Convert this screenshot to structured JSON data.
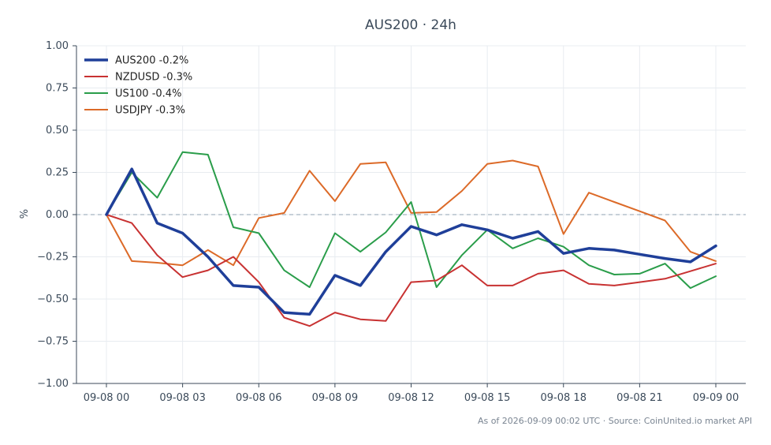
{
  "chart_data": {
    "type": "line",
    "title": "AUS200 · 24h",
    "ylabel": "%",
    "xlabel": "",
    "ylim": [
      -1.0,
      1.0
    ],
    "yticks": [
      1.0,
      0.75,
      0.5,
      0.25,
      0.0,
      -0.25,
      -0.5,
      -0.75,
      -1.0
    ],
    "ytick_labels": [
      "1.00",
      "0.75",
      "0.50",
      "0.25",
      "0.00",
      "−0.25",
      "−0.50",
      "−0.75",
      "−1.00"
    ],
    "xlim": [
      0,
      24
    ],
    "xticks": [
      0,
      3,
      6,
      9,
      12,
      15,
      18,
      21,
      24
    ],
    "xtick_labels": [
      "09-08 00",
      "09-08 03",
      "09-08 06",
      "09-08 09",
      "09-08 12",
      "09-08 15",
      "09-08 18",
      "09-08 21",
      "09-09 00"
    ],
    "grid": true,
    "zero_line": true,
    "legend_position": "top-left",
    "series": [
      {
        "name": "AUS200 -0.2%",
        "color": "#1f3f99",
        "width": 3.5,
        "x": [
          0,
          1,
          2,
          3,
          4,
          5,
          6,
          7,
          8,
          9,
          10,
          11,
          12,
          13,
          14,
          15,
          16,
          17,
          18,
          19,
          20,
          21,
          22,
          23,
          24
        ],
        "values": [
          0.0,
          0.27,
          -0.05,
          -0.11,
          -0.25,
          -0.42,
          -0.43,
          -0.58,
          -0.59,
          -0.36,
          -0.42,
          -0.22,
          -0.07,
          -0.12,
          -0.06,
          -0.09,
          -0.14,
          -0.1,
          -0.23,
          -0.2,
          -0.21,
          -0.235,
          -0.26,
          -0.28,
          -0.185
        ]
      },
      {
        "name": "NZDUSD -0.3%",
        "color": "#c83232",
        "width": 2,
        "x": [
          0,
          1,
          2,
          3,
          4,
          5,
          6,
          7,
          8,
          9,
          10,
          11,
          12,
          13,
          14,
          15,
          16,
          17,
          18,
          19,
          20,
          21,
          22,
          23,
          24
        ],
        "values": [
          0.0,
          -0.05,
          -0.24,
          -0.37,
          -0.33,
          -0.25,
          -0.4,
          -0.61,
          -0.66,
          -0.58,
          -0.62,
          -0.63,
          -0.4,
          -0.39,
          -0.3,
          -0.42,
          -0.42,
          -0.35,
          -0.33,
          -0.41,
          -0.42,
          -0.4,
          -0.38,
          -0.335,
          -0.29
        ]
      },
      {
        "name": "US100 -0.4%",
        "color": "#2a9d4a",
        "width": 2,
        "x": [
          0,
          1,
          2,
          3,
          4,
          5,
          6,
          7,
          8,
          9,
          10,
          11,
          12,
          13,
          14,
          15,
          16,
          17,
          18,
          19,
          20,
          21,
          22,
          23,
          24
        ],
        "values": [
          0.0,
          0.25,
          0.1,
          0.37,
          0.355,
          -0.075,
          -0.11,
          -0.33,
          -0.43,
          -0.11,
          -0.22,
          -0.105,
          0.075,
          -0.43,
          -0.24,
          -0.09,
          -0.2,
          -0.14,
          -0.19,
          -0.3,
          -0.355,
          -0.35,
          -0.29,
          -0.435,
          -0.365
        ]
      },
      {
        "name": "USDJPY -0.3%",
        "color": "#dc6a28",
        "width": 2,
        "x": [
          0,
          1,
          2,
          3,
          4,
          5,
          6,
          7,
          8,
          9,
          10,
          11,
          12,
          13,
          14,
          15,
          16,
          17,
          18,
          19,
          20,
          21,
          22,
          23,
          24
        ],
        "values": [
          0.0,
          -0.275,
          -0.285,
          -0.3,
          -0.21,
          -0.3,
          -0.02,
          0.01,
          0.26,
          0.08,
          0.3,
          0.31,
          0.01,
          0.015,
          0.14,
          0.3,
          0.32,
          0.285,
          -0.115,
          0.13,
          0.075,
          0.02,
          -0.035,
          -0.22,
          -0.275
        ]
      }
    ]
  },
  "footer": "As of 2026-09-09 00:02 UTC · Source: CoinUnited.io market API"
}
